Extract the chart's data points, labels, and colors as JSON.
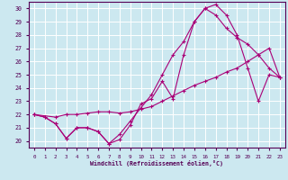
{
  "xlabel": "Windchill (Refroidissement éolien,°C)",
  "bg_color": "#cce8f0",
  "line_color": "#aa0077",
  "grid_color": "#ffffff",
  "xlim": [
    -0.5,
    23.5
  ],
  "ylim": [
    19.5,
    30.5
  ],
  "yticks": [
    20,
    21,
    22,
    23,
    24,
    25,
    26,
    27,
    28,
    29,
    30
  ],
  "xticks": [
    0,
    1,
    2,
    3,
    4,
    5,
    6,
    7,
    8,
    9,
    10,
    11,
    12,
    13,
    14,
    15,
    16,
    17,
    18,
    19,
    20,
    21,
    22,
    23
  ],
  "series": [
    {
      "x": [
        0,
        1,
        2,
        3,
        4,
        5,
        6,
        7,
        8,
        9,
        10,
        11,
        12,
        13,
        14,
        15,
        16,
        17,
        18,
        19,
        20,
        21,
        22,
        23
      ],
      "y": [
        22.0,
        21.8,
        21.3,
        20.2,
        21.0,
        21.0,
        20.7,
        19.8,
        20.1,
        21.2,
        22.8,
        23.2,
        24.5,
        23.2,
        26.5,
        29.0,
        30.0,
        30.3,
        29.5,
        28.0,
        25.5,
        23.0,
        25.0,
        24.8
      ]
    },
    {
      "x": [
        0,
        1,
        2,
        3,
        4,
        5,
        6,
        7,
        8,
        9,
        10,
        11,
        12,
        13,
        14,
        15,
        16,
        17,
        18,
        19,
        20,
        21,
        22,
        23
      ],
      "y": [
        22.0,
        21.8,
        21.3,
        20.2,
        21.0,
        21.0,
        20.7,
        19.8,
        20.5,
        21.5,
        22.5,
        23.5,
        25.0,
        26.5,
        27.5,
        29.0,
        30.0,
        29.5,
        28.5,
        27.8,
        27.3,
        26.5,
        25.5,
        24.8
      ]
    },
    {
      "x": [
        0,
        2,
        3,
        4,
        5,
        6,
        7,
        8,
        9,
        10,
        11,
        12,
        13,
        14,
        15,
        16,
        17,
        18,
        19,
        20,
        21,
        22,
        23
      ],
      "y": [
        22.0,
        21.8,
        22.0,
        22.0,
        22.1,
        22.2,
        22.2,
        22.1,
        22.2,
        22.4,
        22.6,
        23.0,
        23.4,
        23.8,
        24.2,
        24.5,
        24.8,
        25.2,
        25.5,
        26.0,
        26.5,
        27.0,
        24.8
      ]
    }
  ]
}
